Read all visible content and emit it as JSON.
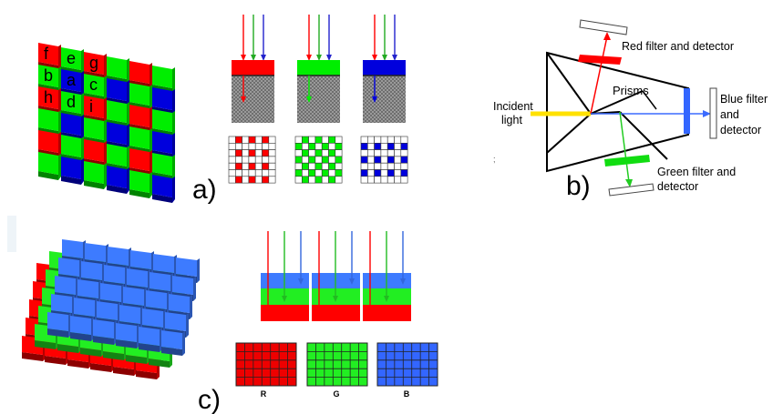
{
  "panel_a": {
    "label": "a)",
    "mosaic_letters": [
      "f",
      "e",
      "g",
      "b",
      "a",
      "c",
      "h",
      "d",
      "i"
    ]
  },
  "panel_b": {
    "label": "b)",
    "red_label": "Red filter and detector",
    "blue_label_lines": [
      "Blue filter",
      "and",
      "detector"
    ],
    "green_label_lines": [
      "Green filter and",
      "detector"
    ],
    "prisms_label": "Prisms",
    "incident_lines": [
      "Incident",
      "light"
    ],
    "stray_mark": ";"
  },
  "panel_c": {
    "label": "c)",
    "channel_labels": [
      "R",
      "G",
      "B"
    ]
  },
  "colors": {
    "red": "#ff0000",
    "green": "#00ee00",
    "blue": "#0000dd",
    "stack_blue": "#3d7bff",
    "grid_red": "#ee0000",
    "grid_green": "#22ee22",
    "grid_blue": "#3366ff",
    "gray": "#8a8a8a",
    "yellow": "#ffe100"
  }
}
